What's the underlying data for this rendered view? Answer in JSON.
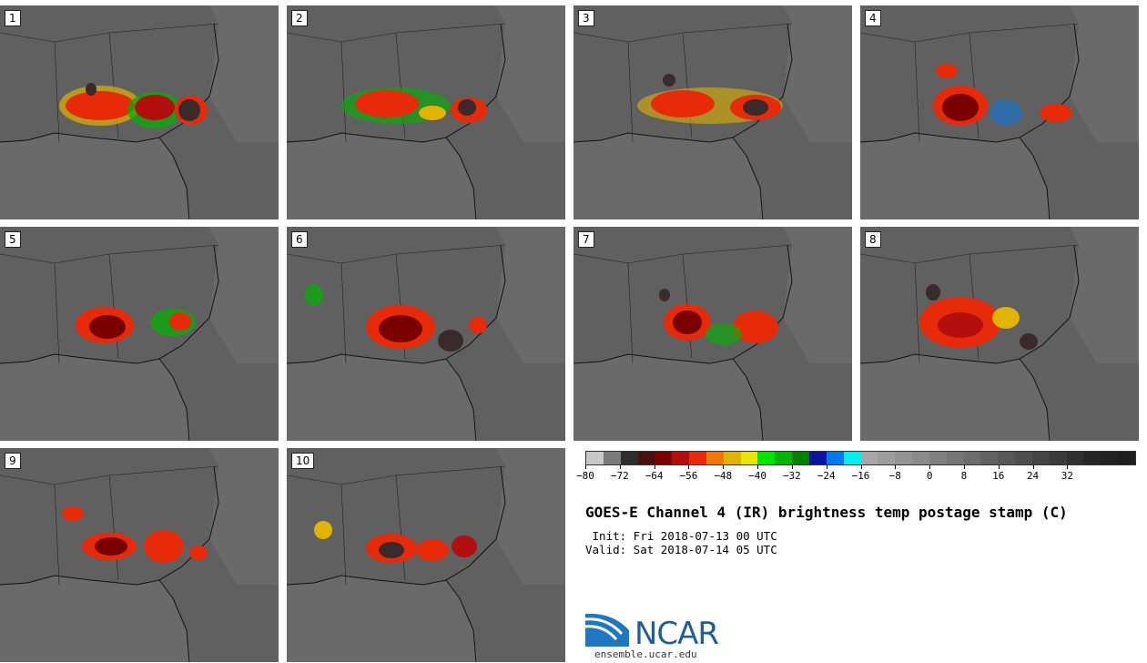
{
  "panels": [
    {
      "label": "1"
    },
    {
      "label": "2"
    },
    {
      "label": "3"
    },
    {
      "label": "4"
    },
    {
      "label": "5"
    },
    {
      "label": "6"
    },
    {
      "label": "7"
    },
    {
      "label": "8"
    },
    {
      "label": "9"
    },
    {
      "label": "10"
    }
  ],
  "colorbar": {
    "colors": [
      "#c8c8c8",
      "#7a7a7a",
      "#2e2e2e",
      "#4a1010",
      "#7a0000",
      "#b40f0f",
      "#e62a0a",
      "#f0780a",
      "#e0b400",
      "#e6e600",
      "#00e600",
      "#00b400",
      "#008200",
      "#0a14a0",
      "#0078f0",
      "#00f0f0",
      "#a8a8a8",
      "#9e9e9e",
      "#949494",
      "#8a8a8a",
      "#808080",
      "#767676",
      "#6c6c6c",
      "#626262",
      "#585858",
      "#4e4e4e",
      "#444444",
      "#3a3a3a",
      "#303030",
      "#262626",
      "#222222",
      "#1e1e1e"
    ],
    "tick_values": [
      "-80",
      "-72",
      "-64",
      "-56",
      "-48",
      "-40",
      "-32",
      "-24",
      "-16",
      "-8",
      "0",
      "8",
      "16",
      "24",
      "32"
    ]
  },
  "title": "GOES-E Channel 4 (IR) brightness temp postage stamp (C)",
  "init": " Init: Fri 2018-07-13 00 UTC",
  "valid": "Valid: Sat 2018-07-14 05 UTC",
  "logo": {
    "text": "NCAR",
    "url": "ensemble.ucar.edu"
  }
}
